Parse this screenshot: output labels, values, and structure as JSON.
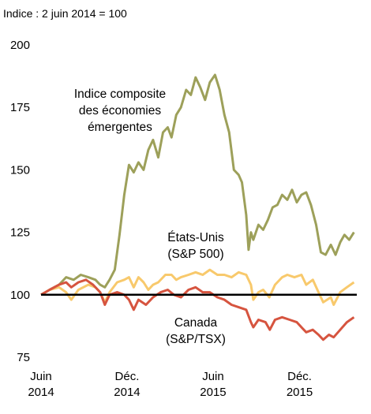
{
  "chart_data": {
    "type": "line",
    "subtitle": "Indice : 2 juin 2014 = 100",
    "xlabel": "",
    "ylabel": "",
    "ylim": [
      75,
      200
    ],
    "yticks": [
      75,
      100,
      125,
      150,
      175,
      200
    ],
    "xlim": [
      "2014-06-02",
      "2016-03-31"
    ],
    "xticks": [
      {
        "date": "2014-06-01",
        "line1": "Juin",
        "line2": "2014"
      },
      {
        "date": "2014-12-01",
        "line1": "Déc.",
        "line2": "2014"
      },
      {
        "date": "2015-06-01",
        "line1": "Juin",
        "line2": "2015"
      },
      {
        "date": "2015-12-01",
        "line1": "Déc.",
        "line2": "2015"
      }
    ],
    "grid": false,
    "reference_line": 100,
    "series": [
      {
        "name_lines": [
          "Indice composite",
          "des économies",
          "émergentes"
        ],
        "color": "#9da05a",
        "points": [
          [
            "2014-06-02",
            100
          ],
          [
            "2014-06-20",
            102
          ],
          [
            "2014-07-10",
            104
          ],
          [
            "2014-07-25",
            107
          ],
          [
            "2014-08-10",
            106
          ],
          [
            "2014-08-25",
            108
          ],
          [
            "2014-09-10",
            107
          ],
          [
            "2014-09-25",
            106
          ],
          [
            "2014-10-05",
            104
          ],
          [
            "2014-10-15",
            103
          ],
          [
            "2014-10-25",
            106
          ],
          [
            "2014-11-05",
            110
          ],
          [
            "2014-11-15",
            124
          ],
          [
            "2014-11-25",
            140
          ],
          [
            "2014-12-05",
            152
          ],
          [
            "2014-12-15",
            149
          ],
          [
            "2014-12-25",
            153
          ],
          [
            "2015-01-05",
            150
          ],
          [
            "2015-01-15",
            158
          ],
          [
            "2015-01-25",
            162
          ],
          [
            "2015-02-05",
            155
          ],
          [
            "2015-02-15",
            165
          ],
          [
            "2015-02-25",
            167
          ],
          [
            "2015-03-05",
            163
          ],
          [
            "2015-03-15",
            172
          ],
          [
            "2015-03-25",
            175
          ],
          [
            "2015-04-05",
            182
          ],
          [
            "2015-04-15",
            180
          ],
          [
            "2015-04-25",
            187
          ],
          [
            "2015-05-05",
            183
          ],
          [
            "2015-05-15",
            178
          ],
          [
            "2015-05-25",
            185
          ],
          [
            "2015-06-05",
            188
          ],
          [
            "2015-06-15",
            182
          ],
          [
            "2015-06-25",
            172
          ],
          [
            "2015-07-05",
            165
          ],
          [
            "2015-07-15",
            150
          ],
          [
            "2015-07-25",
            148
          ],
          [
            "2015-08-01",
            145
          ],
          [
            "2015-08-10",
            132
          ],
          [
            "2015-08-15",
            118
          ],
          [
            "2015-08-20",
            125
          ],
          [
            "2015-08-25",
            122
          ],
          [
            "2015-09-05",
            128
          ],
          [
            "2015-09-15",
            126
          ],
          [
            "2015-09-25",
            130
          ],
          [
            "2015-10-05",
            135
          ],
          [
            "2015-10-15",
            136
          ],
          [
            "2015-10-25",
            140
          ],
          [
            "2015-11-05",
            138
          ],
          [
            "2015-11-15",
            142
          ],
          [
            "2015-11-25",
            137
          ],
          [
            "2015-12-05",
            140
          ],
          [
            "2015-12-15",
            141
          ],
          [
            "2015-12-25",
            136
          ],
          [
            "2016-01-05",
            128
          ],
          [
            "2016-01-15",
            117
          ],
          [
            "2016-01-25",
            116
          ],
          [
            "2016-02-05",
            120
          ],
          [
            "2016-02-15",
            116
          ],
          [
            "2016-02-25",
            121
          ],
          [
            "2016-03-05",
            124
          ],
          [
            "2016-03-15",
            122
          ],
          [
            "2016-03-25",
            125
          ]
        ]
      },
      {
        "name_lines": [
          "États-Unis",
          "(S&P 500)"
        ],
        "color": "#f8c96c",
        "points": [
          [
            "2014-06-02",
            100
          ],
          [
            "2014-06-20",
            102
          ],
          [
            "2014-07-10",
            103
          ],
          [
            "2014-07-25",
            101
          ],
          [
            "2014-08-05",
            98
          ],
          [
            "2014-08-20",
            102
          ],
          [
            "2014-09-10",
            104
          ],
          [
            "2014-09-25",
            103
          ],
          [
            "2014-10-05",
            101
          ],
          [
            "2014-10-15",
            97
          ],
          [
            "2014-10-25",
            101
          ],
          [
            "2014-11-10",
            105
          ],
          [
            "2014-11-25",
            106
          ],
          [
            "2014-12-05",
            107
          ],
          [
            "2014-12-15",
            103
          ],
          [
            "2014-12-25",
            107
          ],
          [
            "2015-01-05",
            105
          ],
          [
            "2015-01-15",
            102
          ],
          [
            "2015-01-25",
            104
          ],
          [
            "2015-02-05",
            105
          ],
          [
            "2015-02-20",
            108
          ],
          [
            "2015-03-05",
            108
          ],
          [
            "2015-03-15",
            106
          ],
          [
            "2015-03-25",
            107
          ],
          [
            "2015-04-10",
            108
          ],
          [
            "2015-04-25",
            109
          ],
          [
            "2015-05-10",
            108
          ],
          [
            "2015-05-25",
            110
          ],
          [
            "2015-06-10",
            108
          ],
          [
            "2015-06-25",
            108
          ],
          [
            "2015-07-10",
            107
          ],
          [
            "2015-07-25",
            109
          ],
          [
            "2015-08-10",
            108
          ],
          [
            "2015-08-20",
            104
          ],
          [
            "2015-08-25",
            98
          ],
          [
            "2015-09-05",
            101
          ],
          [
            "2015-09-15",
            102
          ],
          [
            "2015-09-28",
            99
          ],
          [
            "2015-10-10",
            104
          ],
          [
            "2015-10-25",
            107
          ],
          [
            "2015-11-05",
            108
          ],
          [
            "2015-11-20",
            107
          ],
          [
            "2015-12-05",
            108
          ],
          [
            "2015-12-15",
            104
          ],
          [
            "2015-12-29",
            106
          ],
          [
            "2016-01-10",
            101
          ],
          [
            "2016-01-20",
            97
          ],
          [
            "2016-02-05",
            99
          ],
          [
            "2016-02-11",
            96
          ],
          [
            "2016-02-25",
            101
          ],
          [
            "2016-03-10",
            103
          ],
          [
            "2016-03-25",
            105
          ]
        ]
      },
      {
        "name_lines": [
          "Canada",
          "(S&P/TSX)"
        ],
        "color": "#d6543f",
        "points": [
          [
            "2014-06-02",
            100
          ],
          [
            "2014-06-20",
            102
          ],
          [
            "2014-07-10",
            104
          ],
          [
            "2014-07-25",
            105
          ],
          [
            "2014-08-05",
            103
          ],
          [
            "2014-08-20",
            105
          ],
          [
            "2014-09-05",
            106
          ],
          [
            "2014-09-20",
            104
          ],
          [
            "2014-10-05",
            101
          ],
          [
            "2014-10-15",
            96
          ],
          [
            "2014-10-25",
            100
          ],
          [
            "2014-11-10",
            101
          ],
          [
            "2014-11-25",
            100
          ],
          [
            "2014-12-05",
            98
          ],
          [
            "2014-12-15",
            94
          ],
          [
            "2014-12-25",
            98
          ],
          [
            "2015-01-10",
            96
          ],
          [
            "2015-01-25",
            99
          ],
          [
            "2015-02-10",
            101
          ],
          [
            "2015-02-25",
            102
          ],
          [
            "2015-03-10",
            100
          ],
          [
            "2015-03-25",
            99
          ],
          [
            "2015-04-10",
            102
          ],
          [
            "2015-04-25",
            103
          ],
          [
            "2015-05-10",
            101
          ],
          [
            "2015-05-25",
            101
          ],
          [
            "2015-06-10",
            99
          ],
          [
            "2015-06-25",
            98
          ],
          [
            "2015-07-10",
            96
          ],
          [
            "2015-07-25",
            95
          ],
          [
            "2015-08-10",
            94
          ],
          [
            "2015-08-20",
            89
          ],
          [
            "2015-08-25",
            87
          ],
          [
            "2015-09-05",
            90
          ],
          [
            "2015-09-20",
            89
          ],
          [
            "2015-09-29",
            86
          ],
          [
            "2015-10-10",
            90
          ],
          [
            "2015-10-25",
            91
          ],
          [
            "2015-11-10",
            90
          ],
          [
            "2015-11-25",
            89
          ],
          [
            "2015-12-05",
            87
          ],
          [
            "2015-12-15",
            85
          ],
          [
            "2015-12-29",
            86
          ],
          [
            "2016-01-10",
            84
          ],
          [
            "2016-01-20",
            82
          ],
          [
            "2016-02-01",
            84
          ],
          [
            "2016-02-11",
            83
          ],
          [
            "2016-02-25",
            86
          ],
          [
            "2016-03-10",
            89
          ],
          [
            "2016-03-25",
            91
          ]
        ]
      }
    ]
  }
}
